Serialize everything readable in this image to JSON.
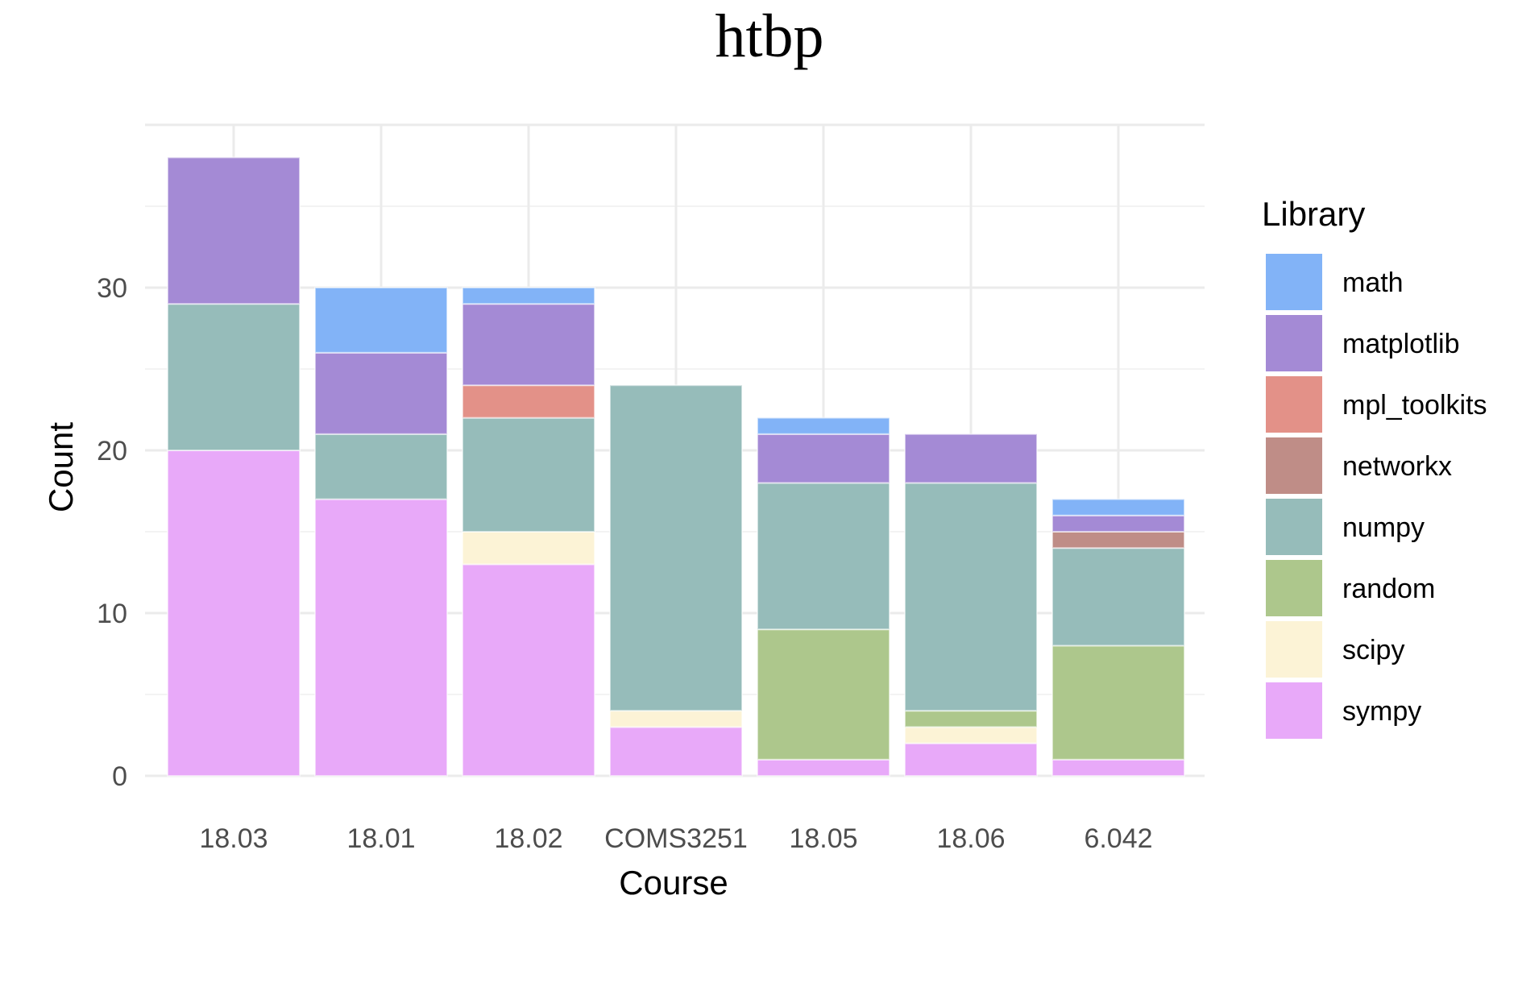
{
  "chart_data": {
    "type": "bar",
    "stacked": true,
    "title": "htbp",
    "xlabel": "Course",
    "ylabel": "Count",
    "ylim": [
      0,
      40
    ],
    "yticks": [
      0,
      10,
      20,
      30
    ],
    "grid": true,
    "legend_title": "Library",
    "legend_position": "right",
    "categories": [
      "18.03",
      "18.01",
      "18.02",
      "COMS3251",
      "18.05",
      "18.06",
      "6.042"
    ],
    "series": [
      {
        "name": "sympy",
        "color": "#e8a9f9",
        "values": [
          20,
          17,
          13,
          3,
          1,
          2,
          1
        ]
      },
      {
        "name": "scipy",
        "color": "#fcf3d6",
        "values": [
          0,
          0,
          2,
          1,
          0,
          1,
          0
        ]
      },
      {
        "name": "random",
        "color": "#adc78c",
        "values": [
          0,
          0,
          0,
          0,
          8,
          1,
          7
        ]
      },
      {
        "name": "numpy",
        "color": "#96bcba",
        "values": [
          9,
          4,
          7,
          20,
          9,
          14,
          6
        ]
      },
      {
        "name": "networkx",
        "color": "#bf8d87",
        "values": [
          0,
          0,
          0,
          0,
          0,
          0,
          1
        ]
      },
      {
        "name": "mpl_toolkits",
        "color": "#e39188",
        "values": [
          0,
          0,
          2,
          0,
          0,
          0,
          0
        ]
      },
      {
        "name": "matplotlib",
        "color": "#a48ad5",
        "values": [
          9,
          5,
          5,
          0,
          3,
          3,
          1
        ]
      },
      {
        "name": "math",
        "color": "#82b3f7",
        "values": [
          0,
          4,
          1,
          0,
          1,
          0,
          1
        ]
      }
    ],
    "legend_order": [
      "math",
      "matplotlib",
      "mpl_toolkits",
      "networkx",
      "numpy",
      "random",
      "scipy",
      "sympy"
    ]
  }
}
